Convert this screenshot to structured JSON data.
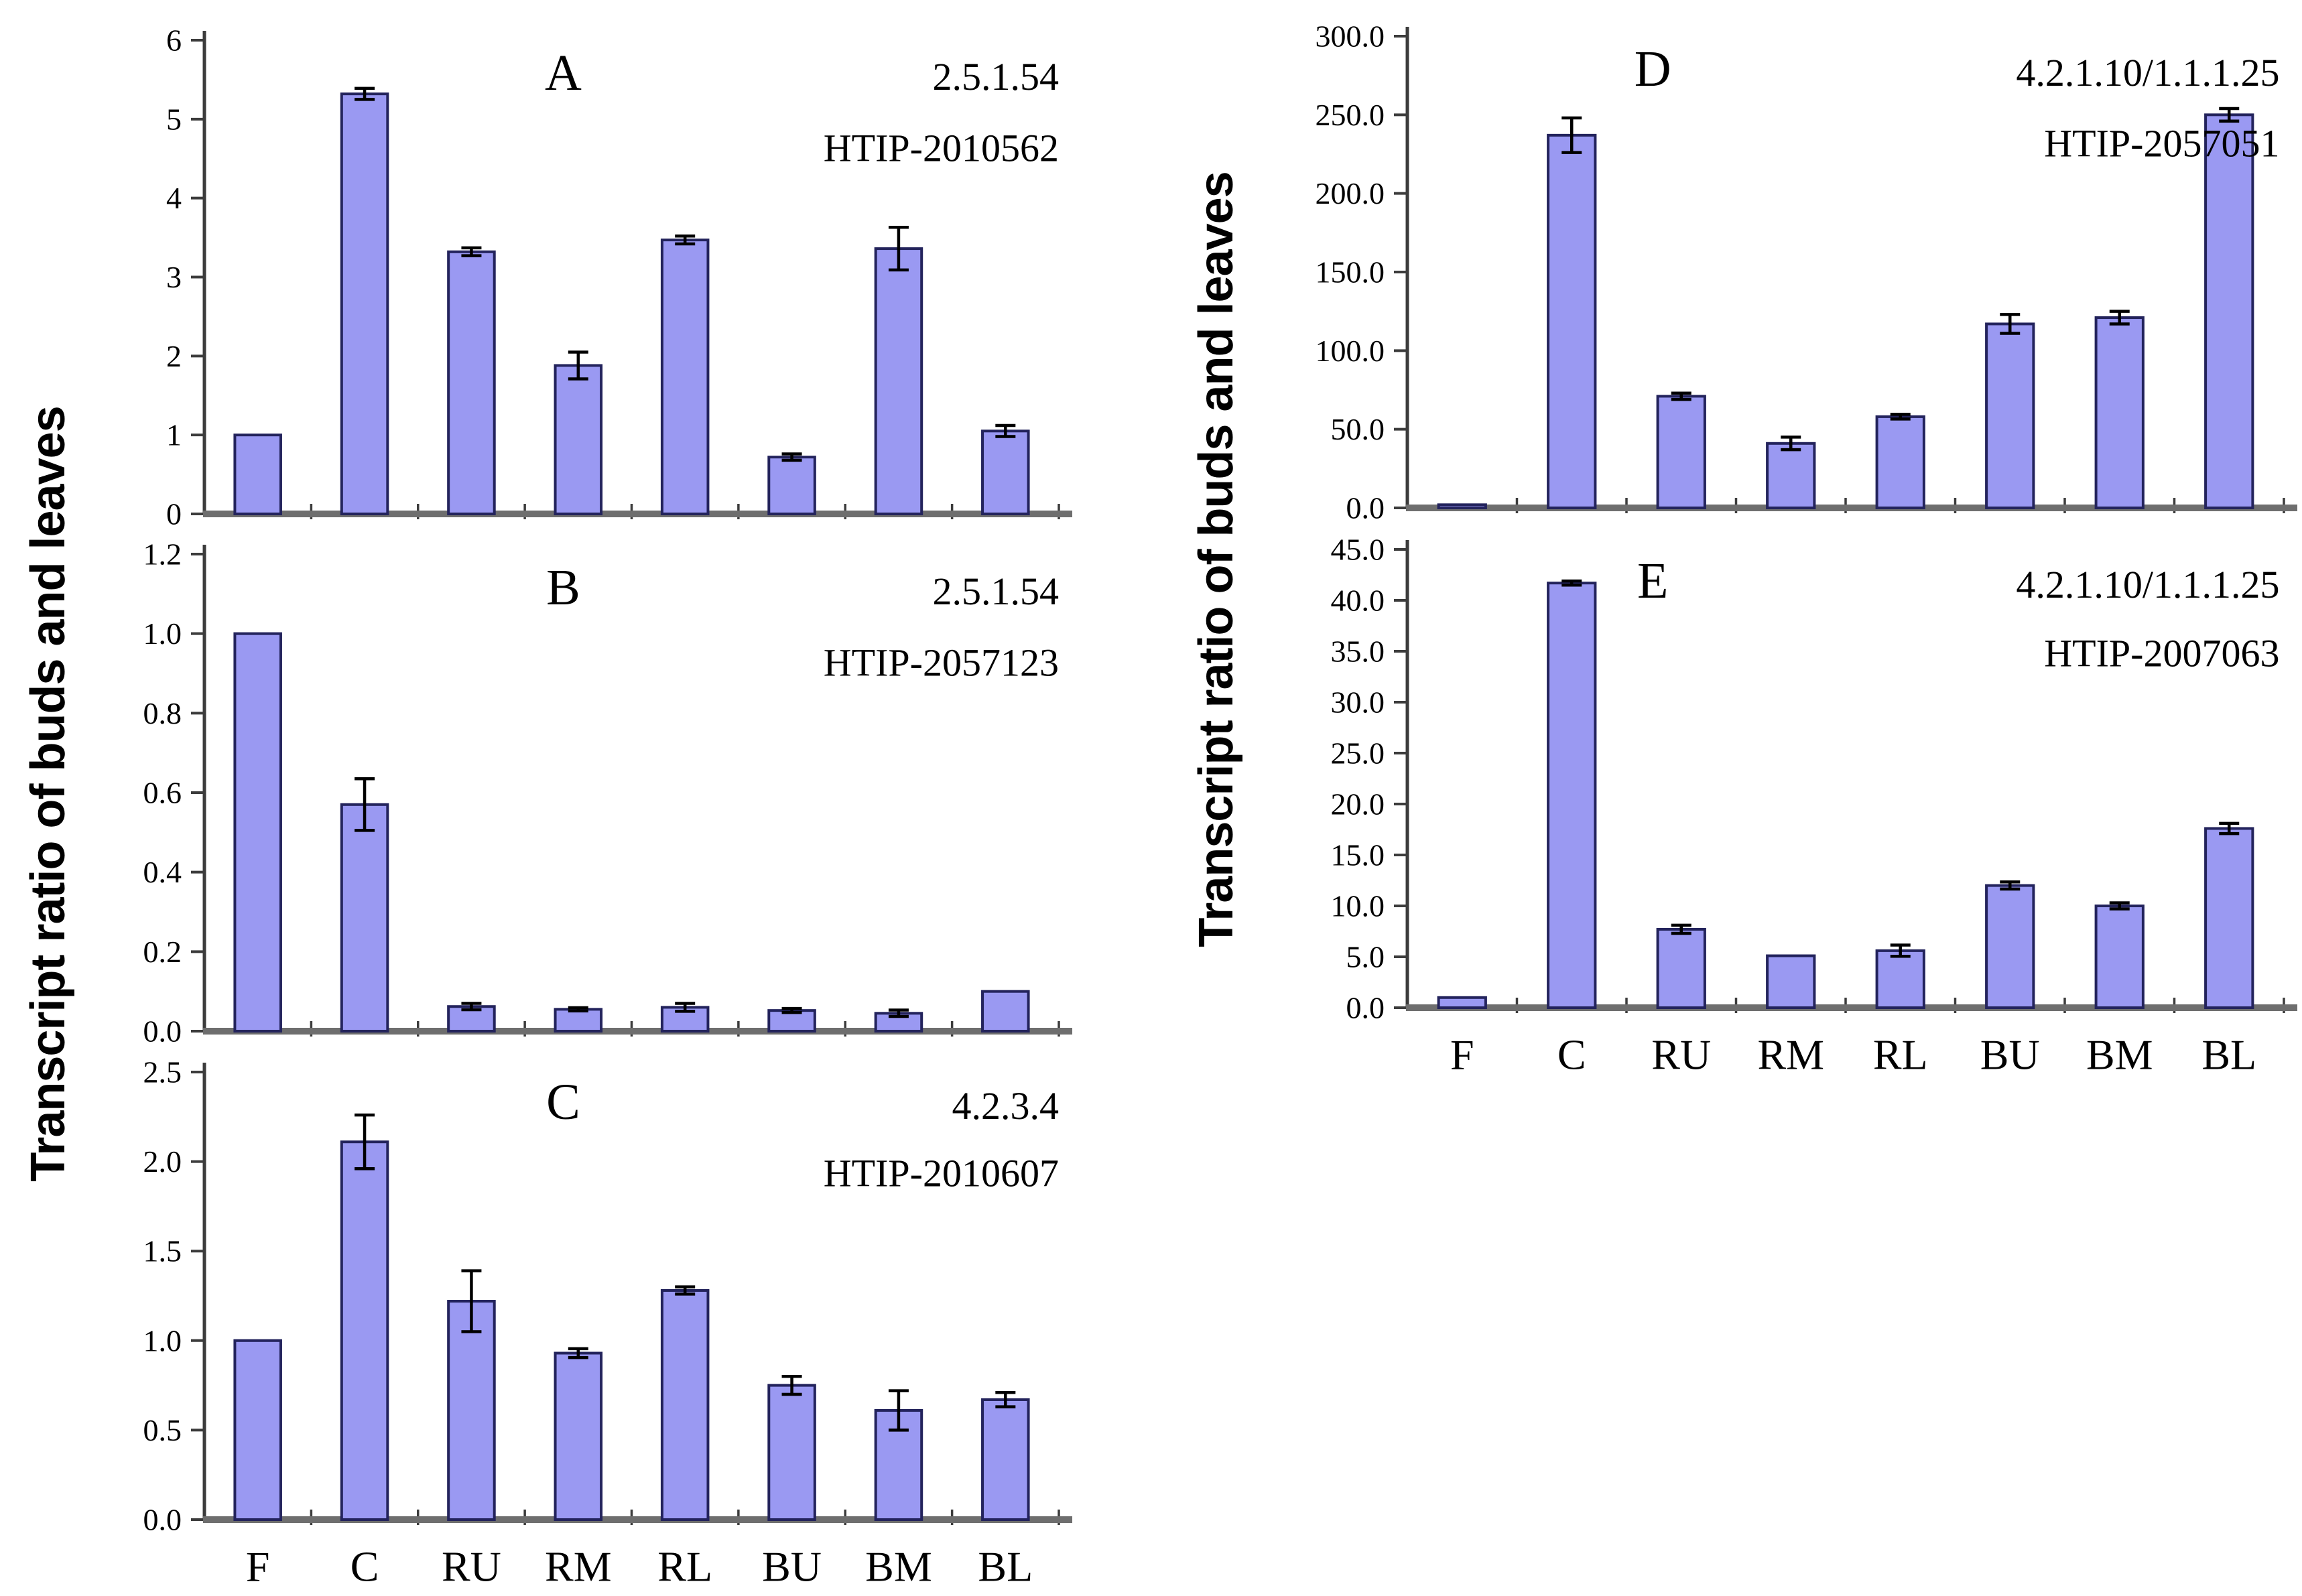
{
  "figure": {
    "left_ylabel": "Transcript ratio of buds and leaves",
    "right_ylabel": "Transcript ratio of buds and leaves",
    "colors": {
      "bar_fill": "#9a99f2",
      "bar_border": "#23235c",
      "axis": "#3c3c3c",
      "baseline": "#6e6e6e",
      "error": "#000000",
      "text": "#000000"
    }
  },
  "chart_data": [
    {
      "id": "A",
      "type": "bar",
      "panel_letter": "A",
      "title_line1": "2.5.1.54",
      "title_line2": "HTIP-2010562",
      "ylabel": "Transcript ratio of buds and leaves",
      "categories": [
        "F",
        "C",
        "RU",
        "RM",
        "RL",
        "BU",
        "BM",
        "BL"
      ],
      "values": [
        1.0,
        5.32,
        3.32,
        1.88,
        3.47,
        0.72,
        3.36,
        1.05
      ],
      "errors": [
        0,
        0.07,
        0.05,
        0.17,
        0.05,
        0.04,
        0.27,
        0.07
      ],
      "ylim": [
        0,
        6
      ],
      "yticks": [
        "0",
        "1",
        "2",
        "3",
        "4",
        "5",
        "6"
      ],
      "grid": false,
      "show_xlabels": false
    },
    {
      "id": "B",
      "type": "bar",
      "panel_letter": "B",
      "title_line1": "2.5.1.54",
      "title_line2": "HTIP-2057123",
      "ylabel": "Transcript ratio of buds and leaves",
      "categories": [
        "F",
        "C",
        "RU",
        "RM",
        "RL",
        "BU",
        "BM",
        "BL"
      ],
      "values": [
        1.0,
        0.57,
        0.062,
        0.055,
        0.06,
        0.052,
        0.045,
        0.1
      ],
      "errors": [
        0,
        0.065,
        0.008,
        0.004,
        0.01,
        0.005,
        0.008,
        0
      ],
      "ylim": [
        0,
        1.2
      ],
      "yticks": [
        "0.0",
        "0.2",
        "0.4",
        "0.6",
        "0.8",
        "1.0",
        "1.2"
      ],
      "grid": false,
      "show_xlabels": false
    },
    {
      "id": "C",
      "type": "bar",
      "panel_letter": "C",
      "title_line1": "4.2.3.4",
      "title_line2": "HTIP-2010607",
      "ylabel": "Transcript ratio of buds and leaves",
      "categories": [
        "F",
        "C",
        "RU",
        "RM",
        "RL",
        "BU",
        "BM",
        "BL"
      ],
      "values": [
        1.0,
        2.11,
        1.22,
        0.93,
        1.28,
        0.75,
        0.61,
        0.67
      ],
      "errors": [
        0,
        0.15,
        0.17,
        0.025,
        0.02,
        0.05,
        0.11,
        0.04
      ],
      "ylim": [
        0,
        2.5
      ],
      "yticks": [
        "0.0",
        "0.5",
        "1.0",
        "1.5",
        "2.0",
        "2.5"
      ],
      "grid": false,
      "show_xlabels": true
    },
    {
      "id": "D",
      "type": "bar",
      "panel_letter": "D",
      "title_line1": "4.2.1.10/1.1.1.25",
      "title_line2": "HTIP-2057051",
      "ylabel": "Transcript ratio of buds and leaves",
      "categories": [
        "F",
        "C",
        "RU",
        "RM",
        "RL",
        "BU",
        "BM",
        "BL"
      ],
      "values": [
        2.0,
        237,
        71,
        41,
        58,
        117,
        121,
        250
      ],
      "errors": [
        0,
        11,
        2,
        4,
        1.5,
        6,
        4,
        4
      ],
      "ylim": [
        0,
        300
      ],
      "yticks": [
        "0.0",
        "50.0",
        "100.0",
        "150.0",
        "200.0",
        "250.0",
        "300.0"
      ],
      "grid": false,
      "show_xlabels": false
    },
    {
      "id": "E",
      "type": "bar",
      "panel_letter": "E",
      "title_line1": "4.2.1.10/1.1.1.25",
      "title_line2": "HTIP-2007063",
      "ylabel": "Transcript ratio of buds and leaves",
      "categories": [
        "F",
        "C",
        "RU",
        "RM",
        "RL",
        "BU",
        "BM",
        "BL"
      ],
      "values": [
        1.0,
        41.7,
        7.7,
        5.1,
        5.6,
        12.0,
        10.0,
        17.6
      ],
      "errors": [
        0,
        0.2,
        0.4,
        0,
        0.55,
        0.35,
        0.3,
        0.5
      ],
      "ylim": [
        0,
        45
      ],
      "yticks": [
        "0.0",
        "5.0",
        "10.0",
        "15.0",
        "20.0",
        "25.0",
        "30.0",
        "35.0",
        "40.0",
        "45.0"
      ],
      "grid": false,
      "show_xlabels": true
    }
  ]
}
